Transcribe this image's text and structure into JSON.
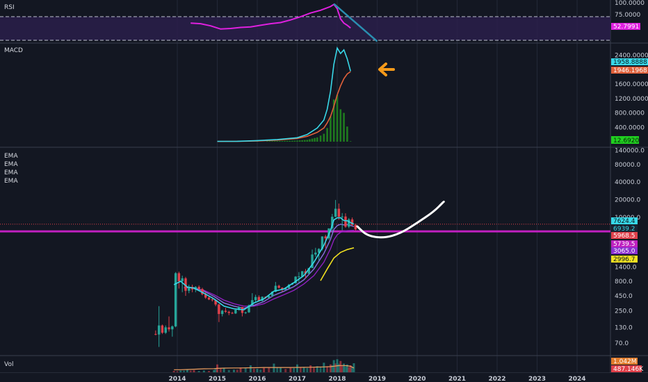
{
  "panels": {
    "rsi_label": "RSI",
    "macd_label": "MACD",
    "ema_labels": [
      "EMA",
      "EMA",
      "EMA",
      "EMA"
    ],
    "vol_label": "Vol"
  },
  "colors": {
    "background": "#131722",
    "rsi_line": "#e020e0",
    "rsi_band": "#2a1f4a",
    "trend_arrow": "#2a8fb0",
    "macd_line": "#38d8e8",
    "signal_line": "#e0603a",
    "histogram": "#1f7a1f",
    "arrow_marker": "#f59a1a",
    "candle_up": "#26a69a",
    "candle_down": "#e0404a",
    "ema_fast": "#38d8e8",
    "ema_mid": "#8a70e0",
    "ema_slow": "#9020c0",
    "ema_long": "#f0e020",
    "support_line": "#c020c0",
    "projection": "#ffffff",
    "volume_ma": "#f0a060"
  },
  "chart_data": [
    {
      "type": "line",
      "panel": "RSI",
      "yticks": [
        "100.0000",
        "75.0000"
      ],
      "ylim": [
        30,
        100
      ],
      "band": [
        30,
        70
      ],
      "current_value": "52.7991",
      "x": [
        "2014-05",
        "2014-08",
        "2014-11",
        "2015-02",
        "2015-05",
        "2015-08",
        "2015-11",
        "2016-02",
        "2016-05",
        "2016-08",
        "2016-11",
        "2017-02",
        "2017-05",
        "2017-08",
        "2017-11",
        "2017-12",
        "2018-01",
        "2018-02",
        "2018-03",
        "2018-04",
        "2018-05"
      ],
      "values": [
        62,
        61,
        57,
        51,
        52,
        54,
        55,
        58,
        61,
        63,
        68,
        74,
        81,
        86,
        93,
        97,
        89,
        70,
        62,
        58,
        53
      ],
      "trendline": {
        "from": [
          "2017-12",
          98
        ],
        "to": [
          "2019-01",
          28
        ]
      }
    },
    {
      "type": "line",
      "panel": "MACD",
      "yticks": [
        "2400.0000",
        "2000.0000",
        "1600.0000",
        "1200.0000",
        "800.0000",
        "400.0000"
      ],
      "ylim": [
        0,
        2700
      ],
      "current_values": {
        "macd": "1958.8888",
        "signal": "1946.1968",
        "histogram": "12.6920"
      },
      "x": [
        "2015-01",
        "2015-07",
        "2016-01",
        "2016-07",
        "2017-01",
        "2017-04",
        "2017-07",
        "2017-09",
        "2017-10",
        "2017-11",
        "2017-12",
        "2018-01",
        "2018-02",
        "2018-03",
        "2018-04",
        "2018-05"
      ],
      "macd": [
        10,
        12,
        30,
        60,
        110,
        200,
        380,
        600,
        900,
        1400,
        2150,
        2600,
        2450,
        2550,
        2300,
        1960
      ],
      "signal": [
        5,
        8,
        20,
        45,
        90,
        150,
        260,
        380,
        520,
        700,
        980,
        1300,
        1550,
        1750,
        1880,
        1946
      ],
      "histogram": [
        0,
        0,
        10,
        20,
        30,
        50,
        120,
        220,
        380,
        700,
        1170,
        1300,
        900,
        800,
        420,
        13
      ]
    },
    {
      "type": "candlestick",
      "panel": "EMA",
      "scale": "log",
      "yticks": [
        "140000.0",
        "80000.0",
        "40000.0",
        "20000.0",
        "10000.0",
        "1400.0",
        "800.0",
        "450.0",
        "250.0",
        "130.0",
        "70.0"
      ],
      "ylim": [
        45,
        150000
      ],
      "badges": [
        {
          "value": "7624.4",
          "color": "#38d8e8"
        },
        {
          "value": "6939.2",
          "color": "#1a2230"
        },
        {
          "value": "5968.5",
          "color": "#e0404a"
        },
        {
          "value": "5739.5",
          "color": "#c020c0"
        },
        {
          "value": "3065.0",
          "color": "#8a30d0"
        },
        {
          "value": "2996.7",
          "color": "#f0e020"
        }
      ],
      "support_level": 5739.5,
      "price_line": 7624.4,
      "candles": [
        {
          "t": "2013-06",
          "o": 100,
          "h": 115,
          "l": 95,
          "c": 98
        },
        {
          "t": "2013-07",
          "o": 98,
          "h": 300,
          "l": 60,
          "c": 140
        },
        {
          "t": "2013-08",
          "o": 140,
          "h": 145,
          "l": 100,
          "c": 105
        },
        {
          "t": "2013-09",
          "o": 105,
          "h": 140,
          "l": 100,
          "c": 130
        },
        {
          "t": "2013-10",
          "o": 130,
          "h": 200,
          "l": 110,
          "c": 120
        },
        {
          "t": "2013-11",
          "o": 120,
          "h": 140,
          "l": 90,
          "c": 135
        },
        {
          "t": "2013-12",
          "o": 135,
          "h": 1150,
          "l": 130,
          "c": 1100
        },
        {
          "t": "2014-01",
          "o": 1100,
          "h": 1170,
          "l": 600,
          "c": 800
        },
        {
          "t": "2014-02",
          "o": 800,
          "h": 1000,
          "l": 520,
          "c": 900
        },
        {
          "t": "2014-03",
          "o": 900,
          "h": 950,
          "l": 450,
          "c": 550
        },
        {
          "t": "2014-04",
          "o": 550,
          "h": 700,
          "l": 500,
          "c": 640
        },
        {
          "t": "2014-05",
          "o": 640,
          "h": 700,
          "l": 520,
          "c": 580
        },
        {
          "t": "2014-06",
          "o": 580,
          "h": 660,
          "l": 520,
          "c": 640
        },
        {
          "t": "2014-07",
          "o": 640,
          "h": 680,
          "l": 560,
          "c": 590
        },
        {
          "t": "2014-08",
          "o": 590,
          "h": 620,
          "l": 460,
          "c": 480
        },
        {
          "t": "2014-09",
          "o": 480,
          "h": 520,
          "l": 400,
          "c": 420
        },
        {
          "t": "2014-10",
          "o": 420,
          "h": 450,
          "l": 380,
          "c": 390
        },
        {
          "t": "2014-11",
          "o": 390,
          "h": 430,
          "l": 360,
          "c": 380
        },
        {
          "t": "2014-12",
          "o": 380,
          "h": 390,
          "l": 300,
          "c": 320
        },
        {
          "t": "2015-01",
          "o": 320,
          "h": 330,
          "l": 160,
          "c": 220
        },
        {
          "t": "2015-02",
          "o": 220,
          "h": 260,
          "l": 200,
          "c": 250
        },
        {
          "t": "2015-03",
          "o": 250,
          "h": 280,
          "l": 230,
          "c": 240
        },
        {
          "t": "2015-04",
          "o": 240,
          "h": 250,
          "l": 210,
          "c": 230
        },
        {
          "t": "2015-05",
          "o": 230,
          "h": 240,
          "l": 220,
          "c": 225
        },
        {
          "t": "2015-06",
          "o": 225,
          "h": 260,
          "l": 220,
          "c": 260
        },
        {
          "t": "2015-07",
          "o": 260,
          "h": 300,
          "l": 250,
          "c": 290
        },
        {
          "t": "2015-08",
          "o": 290,
          "h": 290,
          "l": 200,
          "c": 230
        },
        {
          "t": "2015-09",
          "o": 230,
          "h": 240,
          "l": 220,
          "c": 235
        },
        {
          "t": "2015-10",
          "o": 235,
          "h": 320,
          "l": 230,
          "c": 310
        },
        {
          "t": "2015-11",
          "o": 310,
          "h": 500,
          "l": 300,
          "c": 380
        },
        {
          "t": "2015-12",
          "o": 380,
          "h": 470,
          "l": 350,
          "c": 430
        },
        {
          "t": "2016-01",
          "o": 430,
          "h": 460,
          "l": 360,
          "c": 370
        },
        {
          "t": "2016-02",
          "o": 370,
          "h": 440,
          "l": 360,
          "c": 435
        },
        {
          "t": "2016-03",
          "o": 435,
          "h": 440,
          "l": 400,
          "c": 415
        },
        {
          "t": "2016-04",
          "o": 415,
          "h": 460,
          "l": 410,
          "c": 450
        },
        {
          "t": "2016-05",
          "o": 450,
          "h": 540,
          "l": 440,
          "c": 530
        },
        {
          "t": "2016-06",
          "o": 530,
          "h": 780,
          "l": 520,
          "c": 670
        },
        {
          "t": "2016-07",
          "o": 670,
          "h": 700,
          "l": 600,
          "c": 620
        },
        {
          "t": "2016-08",
          "o": 620,
          "h": 630,
          "l": 530,
          "c": 575
        },
        {
          "t": "2016-09",
          "o": 575,
          "h": 620,
          "l": 570,
          "c": 610
        },
        {
          "t": "2016-10",
          "o": 610,
          "h": 720,
          "l": 600,
          "c": 700
        },
        {
          "t": "2016-11",
          "o": 700,
          "h": 760,
          "l": 690,
          "c": 740
        },
        {
          "t": "2016-12",
          "o": 740,
          "h": 980,
          "l": 730,
          "c": 960
        },
        {
          "t": "2017-01",
          "o": 960,
          "h": 1150,
          "l": 760,
          "c": 970
        },
        {
          "t": "2017-02",
          "o": 970,
          "h": 1200,
          "l": 930,
          "c": 1190
        },
        {
          "t": "2017-03",
          "o": 1190,
          "h": 1300,
          "l": 900,
          "c": 1080
        },
        {
          "t": "2017-04",
          "o": 1080,
          "h": 1350,
          "l": 1070,
          "c": 1350
        },
        {
          "t": "2017-05",
          "o": 1350,
          "h": 2800,
          "l": 1340,
          "c": 2300
        },
        {
          "t": "2017-06",
          "o": 2300,
          "h": 3000,
          "l": 2100,
          "c": 2480
        },
        {
          "t": "2017-07",
          "o": 2480,
          "h": 2950,
          "l": 1800,
          "c": 2870
        },
        {
          "t": "2017-08",
          "o": 2870,
          "h": 4700,
          "l": 2700,
          "c": 4700
        },
        {
          "t": "2017-09",
          "o": 4700,
          "h": 5000,
          "l": 2950,
          "c": 4340
        },
        {
          "t": "2017-10",
          "o": 4340,
          "h": 6450,
          "l": 4100,
          "c": 6450
        },
        {
          "t": "2017-11",
          "o": 6450,
          "h": 11400,
          "l": 5500,
          "c": 10200
        },
        {
          "t": "2017-12",
          "o": 10200,
          "h": 19800,
          "l": 10000,
          "c": 14000
        },
        {
          "t": "2018-01",
          "o": 14000,
          "h": 17200,
          "l": 9000,
          "c": 10200
        },
        {
          "t": "2018-02",
          "o": 10200,
          "h": 11800,
          "l": 6000,
          "c": 10300
        },
        {
          "t": "2018-03",
          "o": 10300,
          "h": 11700,
          "l": 6600,
          "c": 6900
        },
        {
          "t": "2018-04",
          "o": 6900,
          "h": 9700,
          "l": 6500,
          "c": 9200
        },
        {
          "t": "2018-05",
          "o": 9200,
          "h": 9900,
          "l": 7100,
          "c": 7400
        },
        {
          "t": "2018-06",
          "o": 7400,
          "h": 7750,
          "l": 5950,
          "c": 6200
        }
      ],
      "ema_fast": [
        [
          "2013-12",
          700
        ],
        [
          "2014-02",
          800
        ],
        [
          "2014-04",
          640
        ],
        [
          "2014-06",
          610
        ],
        [
          "2014-09",
          500
        ],
        [
          "2014-12",
          400
        ],
        [
          "2015-03",
          300
        ],
        [
          "2015-06",
          270
        ],
        [
          "2015-09",
          260
        ],
        [
          "2015-12",
          340
        ],
        [
          "2016-03",
          400
        ],
        [
          "2016-06",
          540
        ],
        [
          "2016-09",
          590
        ],
        [
          "2016-12",
          760
        ],
        [
          "2017-03",
          1000
        ],
        [
          "2017-06",
          1700
        ],
        [
          "2017-09",
          3300
        ],
        [
          "2017-11",
          6000
        ],
        [
          "2017-12",
          9000
        ],
        [
          "2018-01",
          9800
        ],
        [
          "2018-02",
          9800
        ],
        [
          "2018-03",
          8800
        ],
        [
          "2018-04",
          8700
        ],
        [
          "2018-06",
          7600
        ]
      ],
      "ema_mid": [
        [
          "2014-03",
          620
        ],
        [
          "2014-06",
          620
        ],
        [
          "2014-09",
          540
        ],
        [
          "2014-12",
          440
        ],
        [
          "2015-03",
          340
        ],
        [
          "2015-06",
          300
        ],
        [
          "2015-09",
          275
        ],
        [
          "2015-12",
          310
        ],
        [
          "2016-03",
          360
        ],
        [
          "2016-06",
          460
        ],
        [
          "2016-09",
          540
        ],
        [
          "2016-12",
          650
        ],
        [
          "2017-03",
          850
        ],
        [
          "2017-06",
          1300
        ],
        [
          "2017-09",
          2400
        ],
        [
          "2017-11",
          4200
        ],
        [
          "2017-12",
          6200
        ],
        [
          "2018-01",
          7200
        ],
        [
          "2018-02",
          7600
        ],
        [
          "2018-03",
          7400
        ],
        [
          "2018-04",
          7500
        ],
        [
          "2018-06",
          6940
        ]
      ],
      "ema_slow": [
        [
          "2014-06",
          600
        ],
        [
          "2014-09",
          560
        ],
        [
          "2014-12",
          470
        ],
        [
          "2015-03",
          380
        ],
        [
          "2015-06",
          330
        ],
        [
          "2015-09",
          300
        ],
        [
          "2015-12",
          300
        ],
        [
          "2016-03",
          330
        ],
        [
          "2016-06",
          400
        ],
        [
          "2016-09",
          470
        ],
        [
          "2016-12",
          560
        ],
        [
          "2017-03",
          720
        ],
        [
          "2017-06",
          1000
        ],
        [
          "2017-09",
          1700
        ],
        [
          "2017-11",
          2900
        ],
        [
          "2017-12",
          4100
        ],
        [
          "2018-01",
          5000
        ],
        [
          "2018-02",
          5500
        ],
        [
          "2018-03",
          5700
        ],
        [
          "2018-04",
          5900
        ],
        [
          "2018-06",
          5968
        ]
      ],
      "ema_long": [
        [
          "2017-08",
          820
        ],
        [
          "2017-10",
          1300
        ],
        [
          "2017-12",
          2000
        ],
        [
          "2018-02",
          2500
        ],
        [
          "2018-04",
          2800
        ],
        [
          "2018-06",
          3000
        ]
      ],
      "projection": [
        [
          "2018-07",
          7000
        ],
        [
          "2018-10",
          4800
        ],
        [
          "2019-03",
          4400
        ],
        [
          "2019-08",
          5300
        ],
        [
          "2020-01",
          8000
        ],
        [
          "2020-06",
          12500
        ],
        [
          "2020-09",
          18500
        ]
      ]
    },
    {
      "type": "bar",
      "panel": "Vol",
      "current_values": {
        "volume": "1.042M",
        "ma": "487.146K"
      },
      "x": [
        "2013-12",
        "2014-02",
        "2014-04",
        "2014-06",
        "2014-09",
        "2014-12",
        "2015-01",
        "2015-03",
        "2015-06",
        "2015-08",
        "2015-11",
        "2016-01",
        "2016-03",
        "2016-06",
        "2016-08",
        "2016-11",
        "2017-01",
        "2017-03",
        "2017-05",
        "2017-07",
        "2017-09",
        "2017-11",
        "2017-12",
        "2018-01",
        "2018-02",
        "2018-03",
        "2018-04",
        "2018-05",
        "2018-06"
      ],
      "values": [
        0.15,
        0.2,
        0.35,
        0.25,
        0.2,
        0.25,
        0.9,
        0.45,
        0.3,
        0.55,
        0.8,
        0.4,
        0.5,
        1.0,
        0.6,
        0.5,
        0.9,
        0.6,
        0.8,
        0.7,
        1.1,
        0.9,
        1.4,
        1.5,
        1.3,
        1.0,
        0.9,
        0.8,
        1.04
      ],
      "ma": [
        0.3,
        0.3,
        0.32,
        0.35,
        0.4,
        0.42,
        0.45,
        0.48,
        0.5,
        0.5,
        0.52,
        0.53,
        0.55,
        0.55,
        0.55,
        0.55,
        0.56,
        0.57,
        0.58,
        0.6,
        0.62,
        0.65,
        0.7,
        0.75,
        0.78,
        0.78,
        0.75,
        0.7,
        0.49
      ]
    }
  ],
  "x_axis": {
    "ticks": [
      "2014",
      "2015",
      "2016",
      "2017",
      "2018",
      "2019",
      "2020",
      "2021",
      "2022",
      "2023",
      "2024"
    ]
  }
}
